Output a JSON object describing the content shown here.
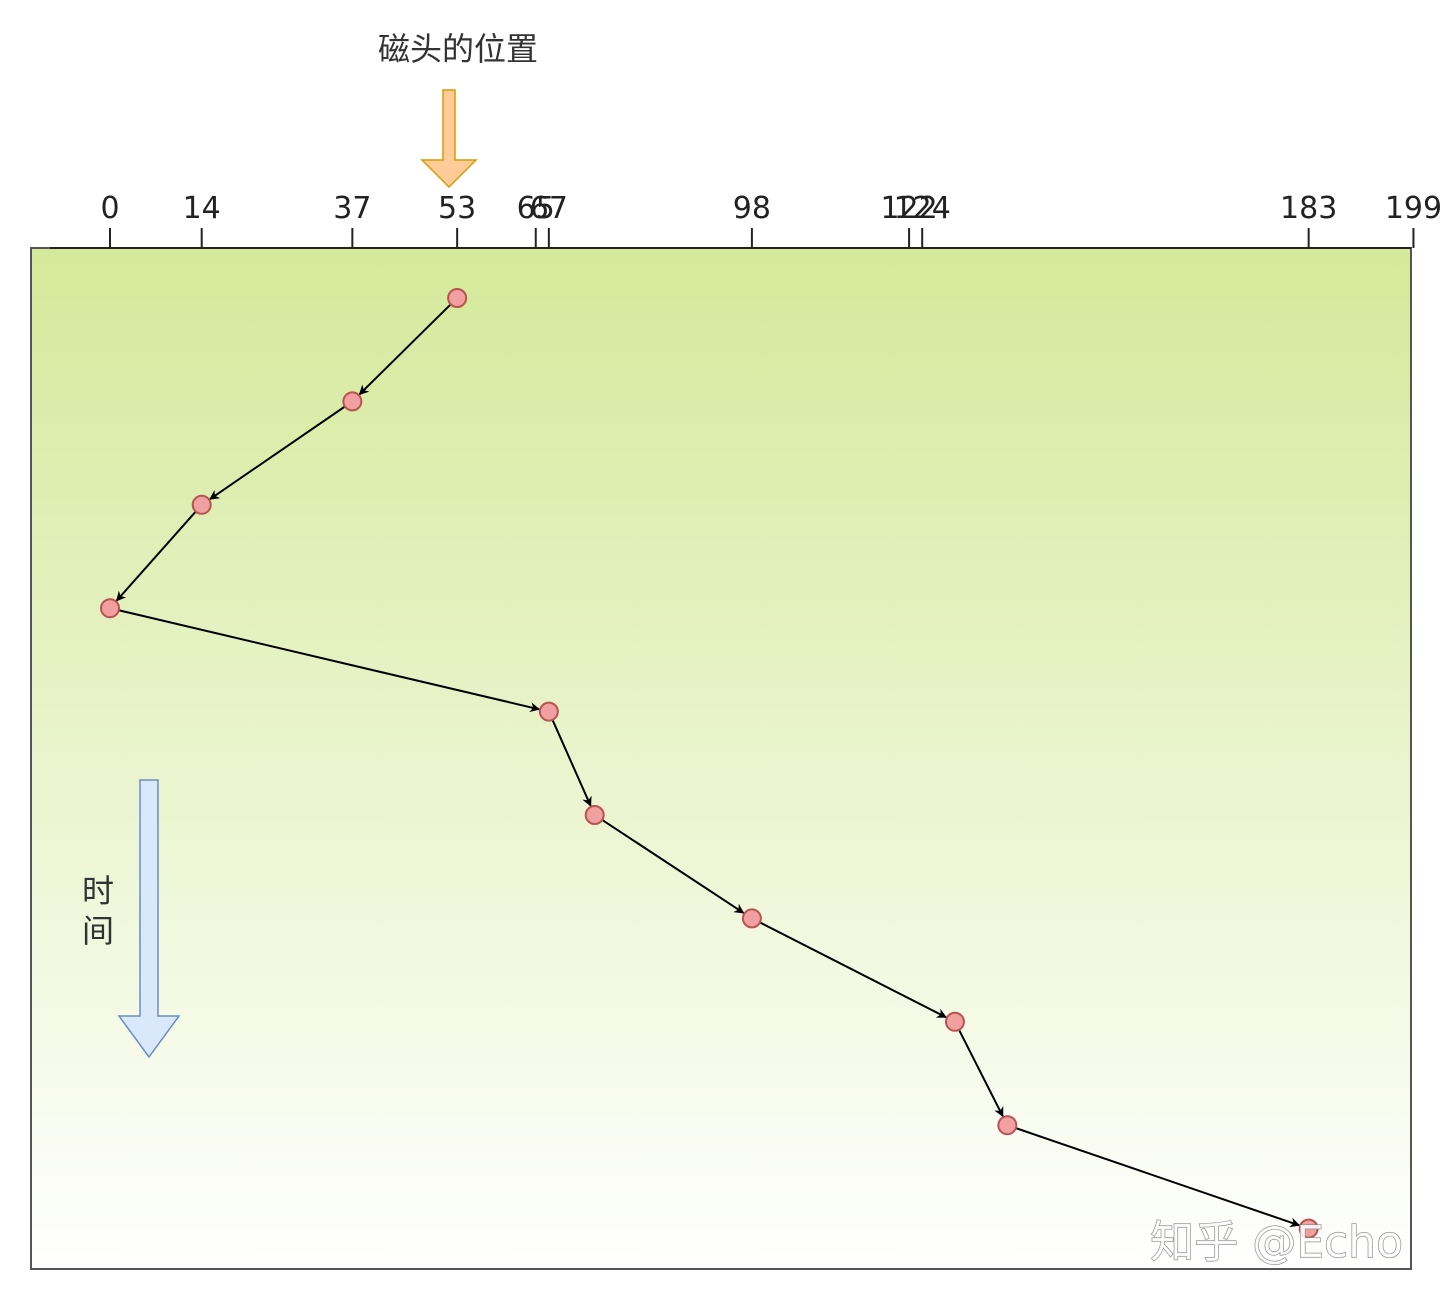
{
  "title": "磁头的位置",
  "time_label_chars": [
    "时",
    "间"
  ],
  "watermark": "知乎 @Echo",
  "axis": {
    "ticks": [
      "0",
      "14",
      "37",
      "53",
      "65",
      "67",
      "98",
      "122",
      "124",
      "183",
      "199"
    ]
  },
  "chart_data": {
    "type": "line",
    "x": [
      53,
      37,
      14,
      0,
      67,
      74,
      98,
      129,
      137,
      183
    ],
    "sequence_order": [
      1,
      2,
      3,
      4,
      5,
      6,
      7,
      8,
      9,
      10
    ],
    "xlim": [
      0,
      199
    ],
    "axis_position": "top",
    "start_position": 53
  },
  "colors": {
    "background_top": "#d4e99a",
    "background_bottom": "#ffffff",
    "point_fill": "#f0a0a0",
    "point_stroke": "#b85450",
    "head_arrow_fill": "#ffcc99",
    "head_arrow_stroke": "#d79b00",
    "time_arrow_fill": "#dae8fc",
    "time_arrow_stroke": "#6c8ebf"
  },
  "icons": {
    "head_marker": "down-arrow-icon",
    "time_direction": "down-arrow-icon"
  }
}
